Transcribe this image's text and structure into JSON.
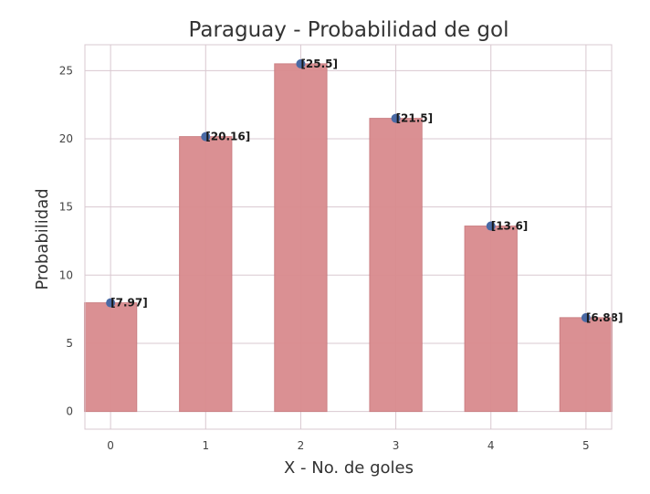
{
  "chart_data": {
    "type": "bar",
    "title": "Paraguay - Probabilidad de gol",
    "xlabel": "X - No. de goles",
    "ylabel": "Probabilidad",
    "categories": [
      "0",
      "1",
      "2",
      "3",
      "4",
      "5"
    ],
    "values": [
      7.97,
      20.16,
      25.5,
      21.5,
      13.6,
      6.88
    ],
    "data_labels": [
      "[7.97]",
      "[20.16]",
      "[25.5]",
      "[21.5]",
      "[13.6]",
      "[6.88]"
    ],
    "yticks": [
      "0",
      "5",
      "10",
      "15",
      "20",
      "25"
    ],
    "ylim": [
      -1.3,
      26.9
    ],
    "xlim": [
      -0.27,
      5.27
    ],
    "grid": true,
    "legend": "none",
    "markers": "points at bar tops",
    "bar_color": "#d98b8e",
    "bar_edge_color": "#c97a7e",
    "marker_color": "#4a6aa5",
    "grid_color": "#d9c8d0",
    "frame_color": "#d9c8d0"
  }
}
